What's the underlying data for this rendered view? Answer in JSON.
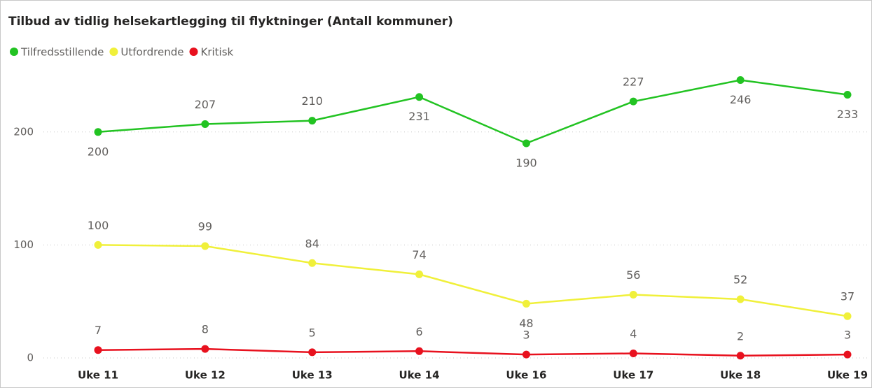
{
  "chart_data": {
    "type": "line",
    "title": "Tilbud av tidlig helsekartlegging til flyktninger (Antall kommuner)",
    "categories": [
      "Uke 11",
      "Uke 12",
      "Uke 13",
      "Uke 14",
      "Uke 16",
      "Uke 17",
      "Uke 18",
      "Uke 19"
    ],
    "series": [
      {
        "name": "Tilfredsstillende",
        "color": "#22c322",
        "values": [
          200,
          207,
          210,
          231,
          190,
          227,
          246,
          233
        ]
      },
      {
        "name": "Utfordrende",
        "color": "#f0f03a",
        "values": [
          100,
          99,
          84,
          74,
          48,
          56,
          52,
          37
        ]
      },
      {
        "name": "Kritisk",
        "color": "#e8111e",
        "values": [
          7,
          8,
          5,
          6,
          3,
          4,
          2,
          3
        ]
      }
    ],
    "ylim": [
      0,
      250
    ],
    "yticks": [
      0,
      100,
      200
    ],
    "grid": true,
    "legend": "top-left"
  }
}
